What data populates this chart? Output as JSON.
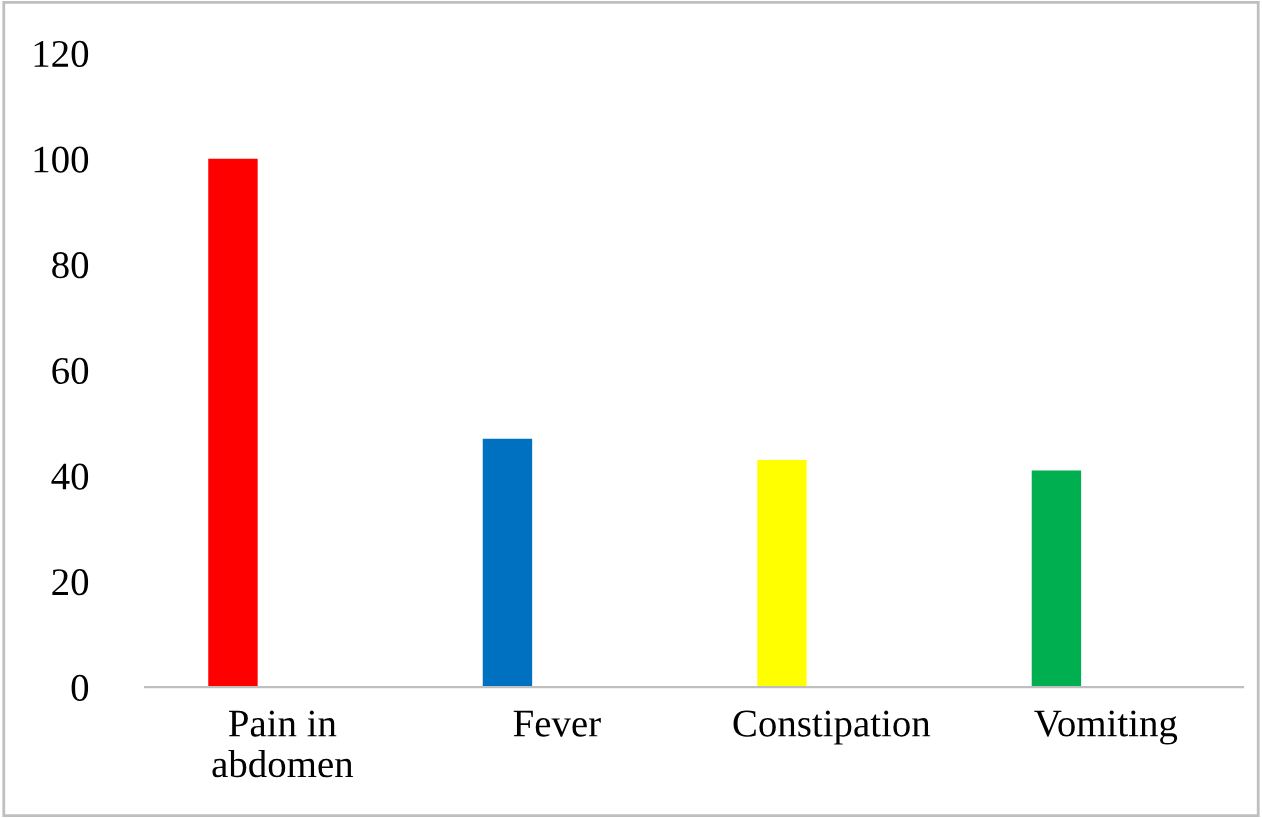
{
  "chart_data": {
    "type": "bar",
    "categories": [
      "Pain in abdomen",
      "Fever",
      "Constipation",
      "Vomiting"
    ],
    "values": [
      100,
      47,
      43,
      41
    ],
    "colors": [
      "#ff0000",
      "#0070c0",
      "#ffff00",
      "#00b050"
    ],
    "ylim": [
      0,
      120
    ],
    "yticks": [
      0,
      20,
      40,
      60,
      80,
      100,
      120
    ],
    "grid": false,
    "legend": false
  }
}
